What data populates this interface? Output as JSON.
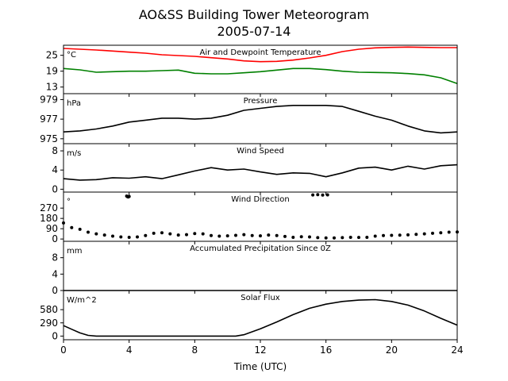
{
  "chart_data": {
    "type": "line",
    "title": "AO&SS Building Tower Meteorogram",
    "subtitle": "2005-07-14",
    "xlabel": "Time (UTC)",
    "xlim": [
      0,
      24
    ],
    "xticks": [
      0,
      4,
      8,
      12,
      16,
      20,
      24
    ],
    "panels": [
      {
        "title": "Air and Dewpoint Temperature",
        "unit": "°C",
        "ylim": [
          10.5,
          28.8
        ],
        "yticks": [
          13,
          19,
          25
        ],
        "series": [
          {
            "color": "#ff0000",
            "style": "line",
            "x": [
              0,
              1,
              2,
              3,
              4,
              5,
              6,
              7,
              8,
              9,
              10,
              11,
              12,
              13,
              14,
              15,
              16,
              17,
              18,
              19,
              20,
              21,
              22,
              23,
              24
            ],
            "values": [
              27.6,
              27.3,
              27.0,
              26.6,
              26.2,
              25.8,
              25.2,
              24.9,
              24.6,
              24.1,
              23.6,
              22.9,
              22.6,
              22.7,
              23.2,
              24.0,
              25.0,
              26.4,
              27.3,
              27.8,
              28.0,
              28.1,
              28.0,
              27.9,
              27.9
            ]
          },
          {
            "color": "#008000",
            "style": "line",
            "x": [
              0,
              1,
              2,
              3,
              4,
              5,
              6,
              7,
              8,
              9,
              10,
              11,
              12,
              13,
              14,
              15,
              16,
              17,
              18,
              19,
              20,
              21,
              22,
              23,
              24
            ],
            "values": [
              20.0,
              19.5,
              18.6,
              18.8,
              19.0,
              19.0,
              19.2,
              19.4,
              18.2,
              18.0,
              18.0,
              18.4,
              18.8,
              19.4,
              20.0,
              20.0,
              19.6,
              19.0,
              18.6,
              18.5,
              18.4,
              18.1,
              17.6,
              16.5,
              14.3
            ]
          }
        ]
      },
      {
        "title": "Pressure",
        "unit": "hPa",
        "ylim": [
          974.5,
          979.6
        ],
        "yticks": [
          975,
          977,
          979
        ],
        "series": [
          {
            "color": "#000000",
            "style": "line",
            "x": [
              0,
              1,
              2,
              3,
              4,
              5,
              6,
              7,
              8,
              9,
              10,
              11,
              12,
              13,
              14,
              15,
              16,
              17,
              18,
              19,
              20,
              21,
              22,
              23,
              24
            ],
            "values": [
              975.7,
              975.8,
              976.0,
              976.3,
              976.7,
              976.9,
              977.1,
              977.1,
              977.0,
              977.1,
              977.4,
              977.9,
              978.1,
              978.3,
              978.4,
              978.4,
              978.4,
              978.3,
              977.8,
              977.3,
              976.9,
              976.3,
              975.8,
              975.6,
              975.7
            ]
          }
        ]
      },
      {
        "title": "Wind Speed",
        "unit": "m/s",
        "ylim": [
          -0.6,
          9.5
        ],
        "yticks": [
          0,
          4,
          8
        ],
        "series": [
          {
            "color": "#000000",
            "style": "line",
            "x": [
              0,
              1,
              2,
              3,
              4,
              5,
              6,
              7,
              8,
              9,
              10,
              11,
              12,
              13,
              14,
              15,
              16,
              17,
              18,
              19,
              20,
              21,
              22,
              23,
              24
            ],
            "values": [
              2.2,
              1.9,
              2.0,
              2.4,
              2.3,
              2.6,
              2.2,
              3.0,
              3.8,
              4.5,
              4.0,
              4.2,
              3.6,
              3.1,
              3.4,
              3.3,
              2.6,
              3.4,
              4.4,
              4.6,
              4.0,
              4.8,
              4.2,
              4.9,
              5.1
            ]
          }
        ]
      },
      {
        "title": "Wind Direction",
        "unit": "°",
        "ylim": [
          -20,
          410
        ],
        "yticks": [
          0,
          90,
          180,
          270
        ],
        "series": [
          {
            "color": "#000000",
            "style": "dots",
            "x": [
              0,
              0.5,
              1,
              1.5,
              2,
              2.5,
              3,
              3.5,
              4,
              4.5,
              5,
              5.5,
              6,
              6.5,
              7,
              7.5,
              8,
              8.5,
              9,
              9.5,
              10,
              10.5,
              11,
              11.5,
              12,
              12.5,
              13,
              13.5,
              14,
              14.5,
              15,
              15.5,
              16,
              16.5,
              17,
              17.5,
              18,
              18.5,
              19,
              19.5,
              20,
              20.5,
              21,
              21.5,
              22,
              22.5,
              23,
              23.5,
              24
            ],
            "values": [
              140,
              100,
              85,
              60,
              45,
              35,
              25,
              18,
              15,
              18,
              30,
              50,
              55,
              45,
              35,
              38,
              48,
              45,
              30,
              25,
              28,
              32,
              38,
              30,
              28,
              35,
              30,
              22,
              15,
              20,
              18,
              12,
              10,
              10,
              12,
              15,
              14,
              15,
              25,
              30,
              32,
              34,
              36,
              40,
              45,
              50,
              55,
              60,
              62
            ]
          },
          {
            "color": "#000000",
            "style": "dots",
            "x": [
              3.85,
              3.9,
              3.95,
              4.0,
              15.2,
              15.5,
              15.8,
              16.1
            ],
            "values": [
              375,
              370,
              368,
              372,
              385,
              388,
              384,
              386
            ]
          }
        ]
      },
      {
        "title": "Accumulated Precipitation Since 0Z",
        "unit": "mm",
        "ylim": [
          0,
          12
        ],
        "yticks": [
          0,
          4,
          8
        ],
        "series": [
          {
            "color": "#000000",
            "style": "line",
            "x": [
              0,
              24
            ],
            "values": [
              0,
              0
            ]
          }
        ]
      },
      {
        "title": "Solar Flux",
        "unit": "W/m^2",
        "ylim": [
          -80,
          1000
        ],
        "yticks": [
          0,
          290,
          580
        ],
        "series": [
          {
            "color": "#000000",
            "style": "line",
            "x": [
              0,
              0.5,
              1,
              1.5,
              2,
              3,
              4,
              5,
              6,
              7,
              8,
              9,
              10,
              10.5,
              11,
              12,
              13,
              14,
              15,
              16,
              17,
              18,
              19,
              20,
              21,
              22,
              23,
              24
            ],
            "values": [
              230,
              150,
              70,
              15,
              0,
              0,
              0,
              0,
              0,
              0,
              0,
              0,
              0,
              0,
              30,
              160,
              310,
              470,
              610,
              700,
              760,
              790,
              800,
              760,
              680,
              550,
              390,
              240
            ]
          }
        ]
      }
    ]
  }
}
